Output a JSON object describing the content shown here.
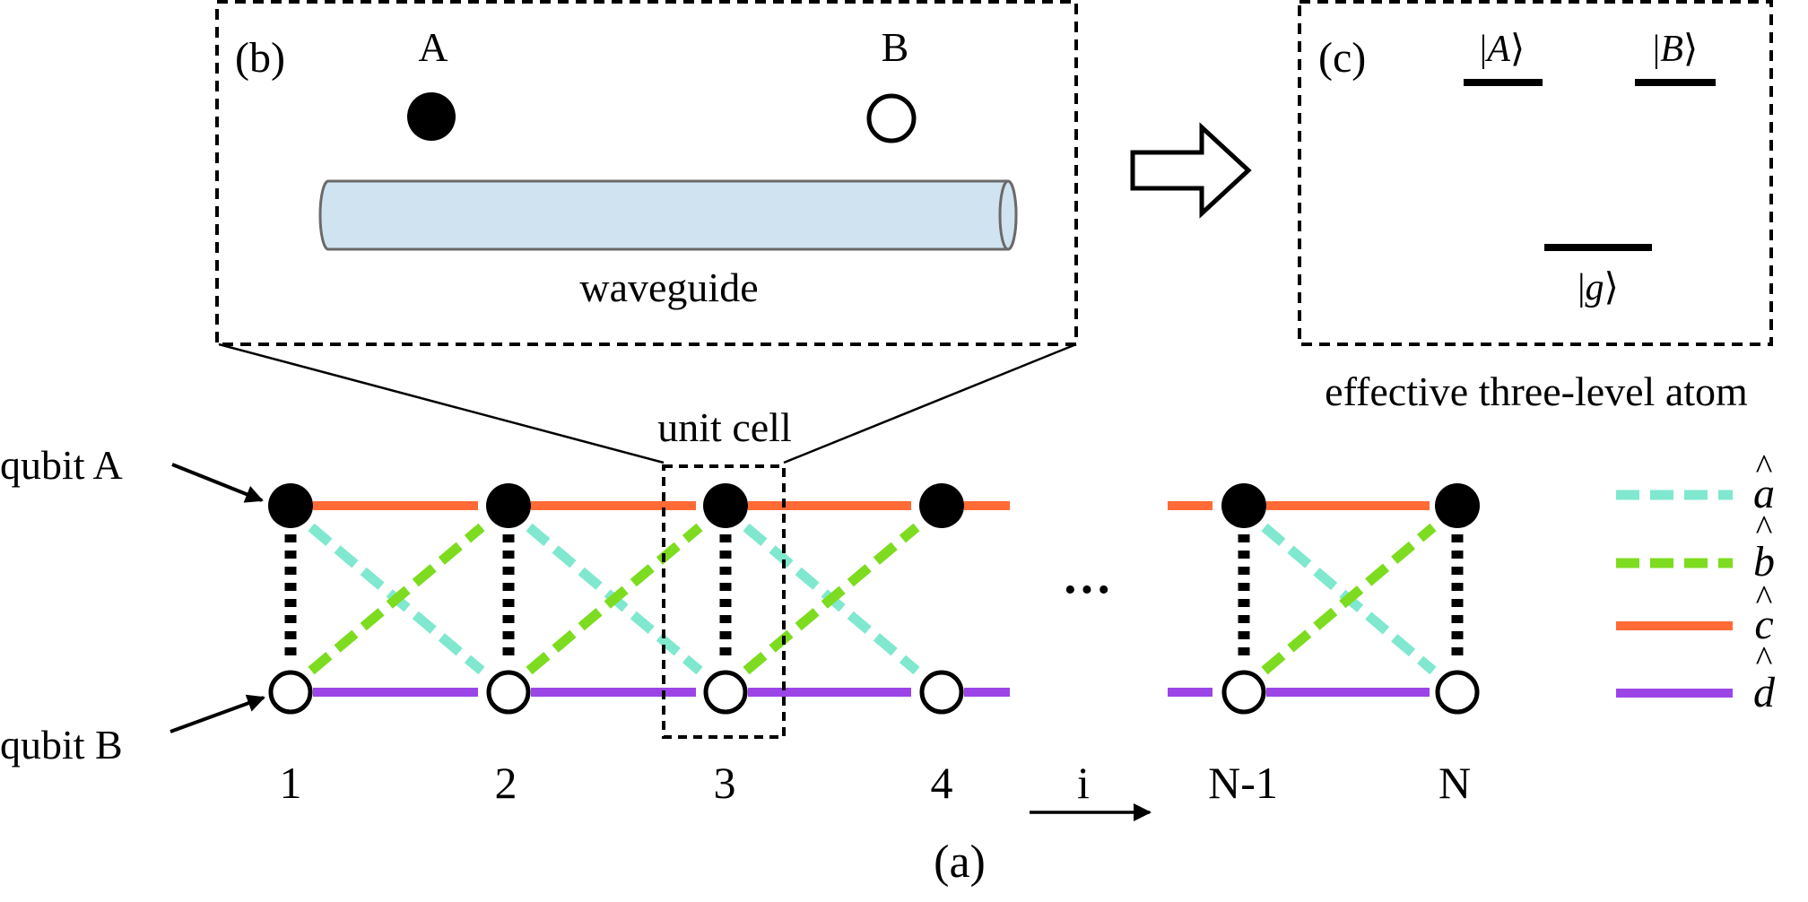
{
  "panel_b": {
    "label": "(b)",
    "atom_a_label": "A",
    "atom_b_label": "B",
    "waveguide_label": "waveguide"
  },
  "panel_c": {
    "label": "(c)",
    "level_a": {
      "bar": "|",
      "symbol": "A",
      "angle": "⟩"
    },
    "level_b": {
      "bar": "|",
      "symbol": "B",
      "angle": "⟩"
    },
    "level_g": {
      "bar": "|",
      "symbol": "g",
      "angle": "⟩"
    },
    "caption": "effective three-level atom"
  },
  "panel_a": {
    "label": "(a)",
    "unit_cell_label": "unit cell",
    "qubit_a_label": "qubit A",
    "qubit_b_label": "qubit B",
    "site_labels": [
      "1",
      "2",
      "3",
      "4",
      "N-1",
      "N"
    ],
    "ellipsis": "···",
    "index_label": "i"
  },
  "legend": [
    {
      "symbol": "a",
      "hat": "^",
      "color": "#7fe8cf",
      "style": "dashed"
    },
    {
      "symbol": "b",
      "hat": "^",
      "color": "#7ddc1f",
      "style": "dashed"
    },
    {
      "symbol": "c",
      "hat": "^",
      "color": "#ff6a35",
      "style": "solid"
    },
    {
      "symbol": "d",
      "hat": "^",
      "color": "#9b45e6",
      "style": "solid"
    }
  ],
  "colors": {
    "waveguide_fill": "#cfe3f0",
    "waveguide_stroke": "#6a6a6a",
    "coupling_black": "#000000"
  }
}
